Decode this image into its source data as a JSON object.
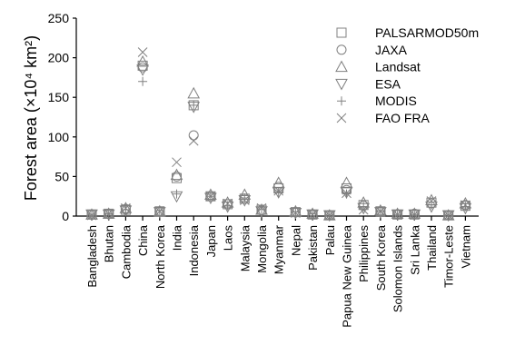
{
  "chart_data": {
    "type": "scatter",
    "ylabel": "Forest area (×10⁴ km²)",
    "ylim": [
      0,
      250
    ],
    "yticks": [
      0,
      50,
      100,
      150,
      200,
      250
    ],
    "grid": false,
    "legend_position": "top-right",
    "marker_color": "#808080",
    "categories": [
      "Bangladesh",
      "Bhutan",
      "Cambodia",
      "China",
      "North Korea",
      "India",
      "Indonesia",
      "Japan",
      "Laos",
      "Malaysia",
      "Mongolia",
      "Myanmar",
      "Nepal",
      "Pakistan",
      "Palau",
      "Papua New Guinea",
      "Philippines",
      "South Korea",
      "Solomon Islands",
      "Sri Lanka",
      "Thailand",
      "Timor-Leste",
      "Vietnam"
    ],
    "series": [
      {
        "name": "PALSARMOD50m",
        "marker": "square",
        "values": [
          2,
          3,
          8,
          190,
          6,
          48,
          140,
          25,
          15,
          22,
          8,
          35,
          5,
          2,
          1,
          35,
          14,
          6,
          2,
          2,
          17,
          1,
          13
        ]
      },
      {
        "name": "JAXA",
        "marker": "circle",
        "values": [
          2,
          3,
          9,
          188,
          6,
          50,
          102,
          25,
          15,
          22,
          7,
          37,
          5,
          2,
          1,
          33,
          13,
          6,
          2,
          3,
          16,
          1,
          14
        ]
      },
      {
        "name": "Landsat",
        "marker": "triangle-up",
        "values": [
          2,
          3,
          10,
          195,
          6,
          52,
          155,
          27,
          17,
          27,
          8,
          42,
          6,
          3,
          1,
          42,
          17,
          7,
          3,
          3,
          20,
          1,
          16
        ]
      },
      {
        "name": "ESA",
        "marker": "triangle-down",
        "values": [
          2,
          2,
          7,
          185,
          5,
          25,
          138,
          23,
          12,
          20,
          6,
          30,
          4,
          2,
          1,
          30,
          10,
          5,
          2,
          2,
          12,
          1,
          10
        ]
      },
      {
        "name": "MODIS",
        "marker": "plus",
        "values": [
          2,
          3,
          8,
          170,
          7,
          28,
          140,
          25,
          13,
          23,
          9,
          30,
          5,
          3,
          1,
          28,
          12,
          6,
          2,
          2,
          14,
          1,
          12
        ]
      },
      {
        "name": "FAO FRA",
        "marker": "x",
        "values": [
          1,
          3,
          10,
          207,
          6,
          68,
          95,
          25,
          16,
          20,
          10,
          32,
          4,
          2,
          1,
          29,
          8,
          6,
          2,
          2,
          19,
          1,
          14
        ]
      }
    ]
  }
}
